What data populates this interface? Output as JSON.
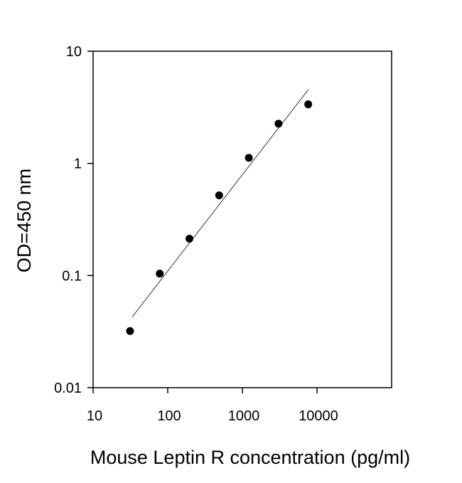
{
  "chart_data": {
    "type": "scatter",
    "x_label": "Mouse Leptin R concentration (pg/ml)",
    "y_label": "OD=450 nm",
    "x": [
      31.25,
      78.125,
      195.3,
      488.3,
      1220.7,
      3051.8,
      7629.4
    ],
    "values": [
      0.032,
      0.104,
      0.213,
      0.519,
      1.12,
      2.26,
      3.36
    ],
    "color": "#000000",
    "fit": {
      "x": [
        33.4,
        7690
      ],
      "values": [
        0.0427,
        4.57
      ],
      "color": "#333333"
    },
    "xscale": "log",
    "yscale": "log",
    "xlim": [
      10,
      100000
    ],
    "ylim": [
      0.01,
      10
    ],
    "xticks": [
      10,
      100,
      1000,
      10000
    ],
    "yticks": [
      0.01,
      0.1,
      1,
      10
    ]
  }
}
